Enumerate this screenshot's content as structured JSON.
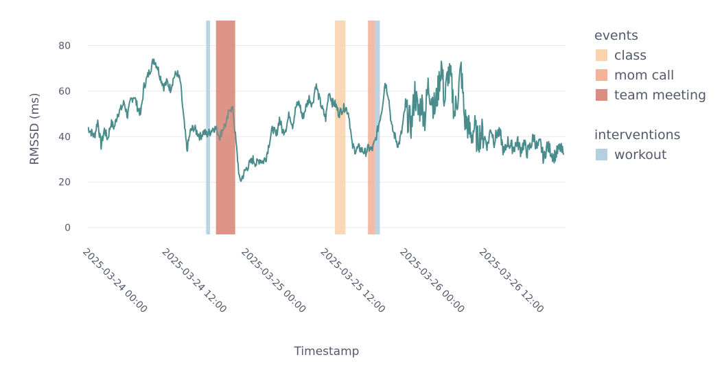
{
  "chart_data": {
    "type": "line",
    "xlabel": "Timestamp",
    "ylabel": "RMSSD (ms)",
    "ylim": [
      -3,
      91
    ],
    "y_ticks": [
      0,
      20,
      40,
      60,
      80
    ],
    "x_ticks": [
      {
        "label": "2025-03-24 00:00",
        "hour": 0
      },
      {
        "label": "2025-03-24 12:00",
        "hour": 12
      },
      {
        "label": "2025-03-25 00:00",
        "hour": 24
      },
      {
        "label": "2025-03-25 12:00",
        "hour": 36
      },
      {
        "label": "2025-03-26 00:00",
        "hour": 48
      },
      {
        "label": "2025-03-26 12:00",
        "hour": 60
      }
    ],
    "xlim_hours": [
      0,
      72.3
    ],
    "grid": true,
    "line_color": "#4a8c8c",
    "series": [
      {
        "values_by_hour": [
          [
            0,
            44
          ],
          [
            0.5,
            42
          ],
          [
            1,
            40
          ],
          [
            1.5,
            47
          ],
          [
            2,
            36
          ],
          [
            2.5,
            43
          ],
          [
            3,
            39
          ],
          [
            3.5,
            46
          ],
          [
            4,
            44
          ],
          [
            4.5,
            50
          ],
          [
            5,
            52
          ],
          [
            5.5,
            55
          ],
          [
            6,
            49
          ],
          [
            6.5,
            56
          ],
          [
            7,
            58
          ],
          [
            7.5,
            53
          ],
          [
            8,
            50
          ],
          [
            8.5,
            62
          ],
          [
            9,
            66
          ],
          [
            9.5,
            70
          ],
          [
            10,
            74
          ],
          [
            10.5,
            71
          ],
          [
            11,
            66
          ],
          [
            11.5,
            62
          ],
          [
            12,
            64
          ],
          [
            12.5,
            61
          ],
          [
            13,
            66
          ],
          [
            13.5,
            68
          ],
          [
            14,
            64
          ],
          [
            14.5,
            48
          ],
          [
            15,
            34
          ],
          [
            15.5,
            42
          ],
          [
            16,
            44
          ],
          [
            16.5,
            42
          ],
          [
            17,
            40
          ],
          [
            17.5,
            42
          ],
          [
            18,
            41
          ],
          [
            18.5,
            42
          ],
          [
            19,
            44
          ],
          [
            19.5,
            43
          ],
          [
            20,
            40
          ],
          [
            20.5,
            44
          ],
          [
            21,
            46
          ],
          [
            21.5,
            53
          ],
          [
            22,
            51
          ],
          [
            22.5,
            35
          ],
          [
            23,
            20
          ],
          [
            23.5,
            23
          ],
          [
            24,
            26
          ],
          [
            24.5,
            28
          ],
          [
            25,
            30
          ],
          [
            25.5,
            28
          ],
          [
            26,
            30
          ],
          [
            26.5,
            29
          ],
          [
            27,
            31
          ],
          [
            27.5,
            38
          ],
          [
            28,
            44
          ],
          [
            28.5,
            40
          ],
          [
            29,
            48
          ],
          [
            29.5,
            42
          ],
          [
            30,
            44
          ],
          [
            30.5,
            50
          ],
          [
            31,
            45
          ],
          [
            31.5,
            53
          ],
          [
            32,
            55
          ],
          [
            32.5,
            48
          ],
          [
            33,
            53
          ],
          [
            33.5,
            57
          ],
          [
            34,
            54
          ],
          [
            34.5,
            63
          ],
          [
            35,
            57
          ],
          [
            35.5,
            52
          ],
          [
            36,
            48
          ],
          [
            36.5,
            60
          ],
          [
            37,
            55
          ],
          [
            37.5,
            54
          ],
          [
            38,
            50
          ],
          [
            38.5,
            52
          ],
          [
            39,
            53
          ],
          [
            39.5,
            50
          ],
          [
            40,
            36
          ],
          [
            40.5,
            34
          ],
          [
            41,
            35
          ],
          [
            41.5,
            34
          ],
          [
            42,
            33
          ],
          [
            42.5,
            35
          ],
          [
            43,
            34
          ],
          [
            43.5,
            38
          ],
          [
            44,
            45
          ],
          [
            44.5,
            52
          ],
          [
            45,
            64
          ],
          [
            45.5,
            58
          ],
          [
            46,
            44
          ],
          [
            46.5,
            40
          ],
          [
            47,
            36
          ],
          [
            47.5,
            42
          ],
          [
            48,
            52
          ],
          [
            48.5,
            48
          ],
          [
            49,
            45
          ],
          [
            49.5,
            60
          ],
          [
            50,
            50
          ],
          [
            50.5,
            55
          ],
          [
            51,
            48
          ],
          [
            51.5,
            62
          ],
          [
            52,
            58
          ],
          [
            52.5,
            52
          ],
          [
            53,
            60
          ],
          [
            53.5,
            72
          ],
          [
            54,
            55
          ],
          [
            54.5,
            68
          ],
          [
            55,
            64
          ],
          [
            55.5,
            50
          ],
          [
            56,
            58
          ],
          [
            56.5,
            70
          ],
          [
            57,
            48
          ],
          [
            57.5,
            45
          ],
          [
            58,
            40
          ],
          [
            58.5,
            44
          ],
          [
            59,
            38
          ],
          [
            59.5,
            42
          ],
          [
            60,
            40
          ],
          [
            60.5,
            36
          ],
          [
            61,
            44
          ],
          [
            61.5,
            38
          ],
          [
            62,
            42
          ],
          [
            62.5,
            40
          ],
          [
            63,
            32
          ],
          [
            63.5,
            38
          ],
          [
            64,
            36
          ],
          [
            64.5,
            35
          ],
          [
            65,
            38
          ],
          [
            65.5,
            34
          ],
          [
            66,
            37
          ],
          [
            66.5,
            33
          ],
          [
            67,
            36
          ],
          [
            67.5,
            40
          ],
          [
            68,
            35
          ],
          [
            68.5,
            37
          ],
          [
            69,
            30
          ],
          [
            69.5,
            36
          ],
          [
            70,
            34
          ],
          [
            70.5,
            31
          ],
          [
            71,
            33
          ],
          [
            71.5,
            35
          ],
          [
            72,
            32
          ]
        ]
      }
    ],
    "events": [
      {
        "type": "class",
        "start_hour": 37.4,
        "end_hour": 39.0
      },
      {
        "type": "mom call",
        "start_hour": 42.4,
        "end_hour": 43.5
      },
      {
        "type": "team meeting",
        "start_hour": 19.4,
        "end_hour": 22.3
      }
    ],
    "interventions": [
      {
        "type": "workout",
        "start_hour": 17.9,
        "end_hour": 18.5
      },
      {
        "type": "workout",
        "start_hour": 43.5,
        "end_hour": 44.2
      }
    ],
    "legend": {
      "placement": "right",
      "groups": [
        {
          "title": "events",
          "items": [
            {
              "label": "class",
              "color": "#f7d4ae"
            },
            {
              "label": "mom call",
              "color": "#f2b39b"
            },
            {
              "label": "team meeting",
              "color": "#d98e7f"
            }
          ]
        },
        {
          "title": "interventions",
          "items": [
            {
              "label": "workout",
              "color": "#b3cfe0"
            }
          ]
        }
      ]
    },
    "band_colors": {
      "class": "#f7d4ae",
      "mom call": "#f2b39b",
      "team meeting": "#d98e7f",
      "workout": "#b3cfe0"
    }
  }
}
